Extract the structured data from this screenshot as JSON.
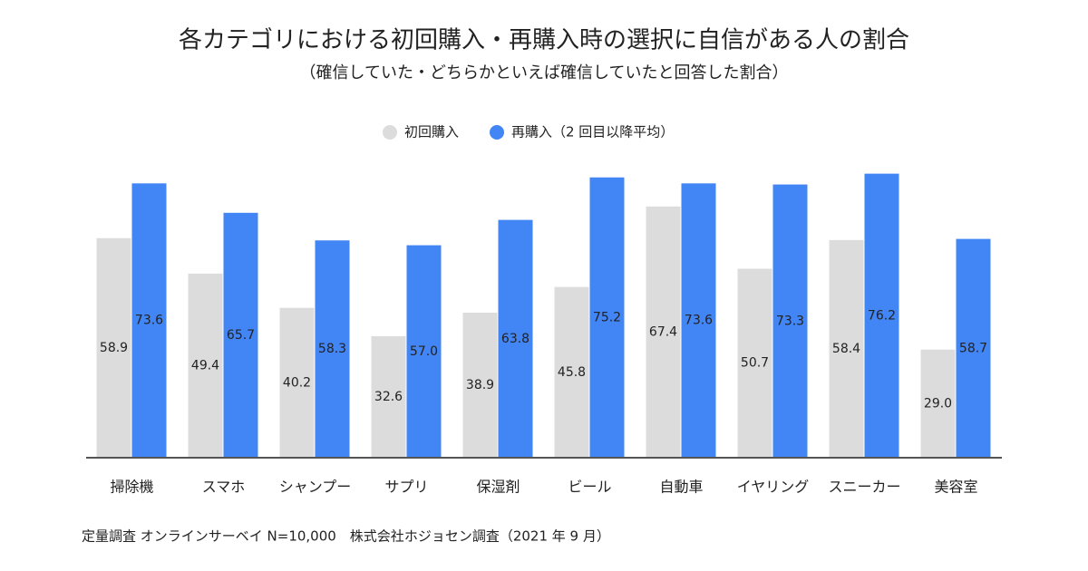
{
  "chart_data": {
    "type": "bar",
    "title": "各カテゴリにおける初回購入・再購入時の選択に自信がある人の割合",
    "subtitle": "（確信していた・どちらかといえば確信していたと回答した割合）",
    "categories": [
      "掃除機",
      "スマホ",
      "シャンプー",
      "サプリ",
      "保湿剤",
      "ビール",
      "自動車",
      "イヤリング",
      "スニーカー",
      "美容室"
    ],
    "series": [
      {
        "name": "初回購入",
        "color": "#dcdcdc",
        "values": [
          58.9,
          49.4,
          40.2,
          32.6,
          38.9,
          45.8,
          67.4,
          50.7,
          58.4,
          29.0
        ],
        "value_labels": [
          "58.9",
          "49.4",
          "40.2",
          "32.6",
          "38.9",
          "45.8",
          "67.4",
          "50.7",
          "58.4",
          "29.0"
        ]
      },
      {
        "name": "再購入（2 回目以降平均）",
        "color": "#4285f4",
        "values": [
          73.6,
          65.7,
          58.3,
          57.0,
          63.8,
          75.2,
          73.6,
          73.3,
          76.2,
          58.7
        ],
        "value_labels": [
          "73.6",
          "65.7",
          "58.3",
          "57.0",
          "63.8",
          "75.2",
          "73.6",
          "73.3",
          "76.2",
          "58.7"
        ]
      }
    ],
    "ylim": [
      0,
      80
    ],
    "note": "定量調査 オンラインサーベイ N=10,000　株式会社ホジョセン調査（2021 年 9 月）"
  }
}
